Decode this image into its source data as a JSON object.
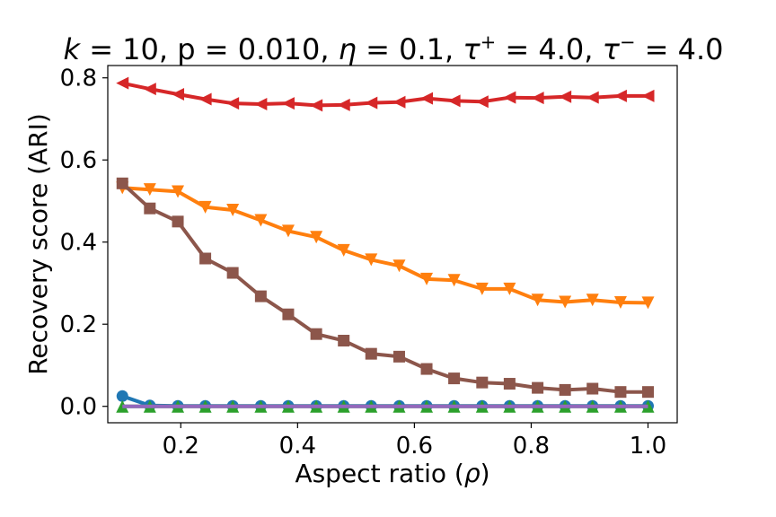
{
  "chart_data": {
    "type": "line",
    "title": "k = 10, p = 0.010, η = 0.1, τ⁺ = 4.0, τ⁻ = 4.0",
    "xlabel": "Aspect ratio (ρ)",
    "ylabel": "Recovery score (ARI)",
    "xlim": [
      0.075,
      1.05
    ],
    "ylim": [
      -0.04,
      0.83
    ],
    "xticks": [
      0.2,
      0.4,
      0.6,
      0.8,
      1.0
    ],
    "xtick_labels": [
      "0.2",
      "0.4",
      "0.6",
      "0.8",
      "1.0"
    ],
    "yticks": [
      0.0,
      0.2,
      0.4,
      0.6,
      0.8
    ],
    "ytick_labels": [
      "0.0",
      "0.2",
      "0.4",
      "0.6",
      "0.8"
    ],
    "grid": false,
    "legend": "none",
    "x": [
      0.1,
      0.147,
      0.195,
      0.242,
      0.289,
      0.337,
      0.384,
      0.432,
      0.479,
      0.526,
      0.574,
      0.621,
      0.668,
      0.716,
      0.763,
      0.811,
      0.858,
      0.905,
      0.953,
      1.0
    ],
    "series": [
      {
        "name": "red",
        "color": "#d62728",
        "marker": "triangle-left",
        "values": [
          0.787,
          0.773,
          0.76,
          0.748,
          0.738,
          0.736,
          0.738,
          0.733,
          0.734,
          0.739,
          0.741,
          0.75,
          0.744,
          0.742,
          0.752,
          0.751,
          0.754,
          0.752,
          0.756,
          0.756
        ]
      },
      {
        "name": "orange",
        "color": "#ff7f0e",
        "marker": "triangle-down",
        "values": [
          0.532,
          0.528,
          0.523,
          0.485,
          0.478,
          0.453,
          0.427,
          0.412,
          0.38,
          0.357,
          0.342,
          0.31,
          0.307,
          0.286,
          0.286,
          0.259,
          0.254,
          0.259,
          0.253,
          0.252
        ]
      },
      {
        "name": "brown",
        "color": "#8c564b",
        "marker": "square",
        "values": [
          0.543,
          0.482,
          0.45,
          0.36,
          0.325,
          0.268,
          0.224,
          0.176,
          0.16,
          0.128,
          0.121,
          0.091,
          0.068,
          0.058,
          0.055,
          0.045,
          0.04,
          0.043,
          0.035,
          0.035
        ]
      },
      {
        "name": "blue",
        "color": "#1f77b4",
        "marker": "circle",
        "values": [
          0.025,
          0.002,
          0.001,
          0.001,
          0.001,
          0.001,
          0.001,
          0.001,
          0.001,
          0.001,
          0.001,
          0.001,
          0.001,
          0.001,
          0.001,
          0.001,
          0.001,
          0.001,
          0.001,
          0.001
        ]
      },
      {
        "name": "green",
        "color": "#2ca02c",
        "marker": "triangle-up",
        "values": [
          0.0,
          0.0,
          0.0,
          0.0,
          0.0,
          0.0,
          0.0,
          0.0,
          0.0,
          0.0,
          0.0,
          0.0,
          0.0,
          0.0,
          0.0,
          0.0,
          0.0,
          0.0,
          0.0,
          0.0
        ]
      },
      {
        "name": "purple",
        "color": "#9467bd",
        "marker": "none",
        "values": [
          0.0,
          0.0,
          0.0,
          0.0,
          0.0,
          0.0,
          0.0,
          0.0,
          0.0,
          0.0,
          0.0,
          0.0,
          0.0,
          0.0,
          0.0,
          0.0,
          0.0,
          0.0,
          0.0,
          0.0
        ]
      }
    ]
  }
}
